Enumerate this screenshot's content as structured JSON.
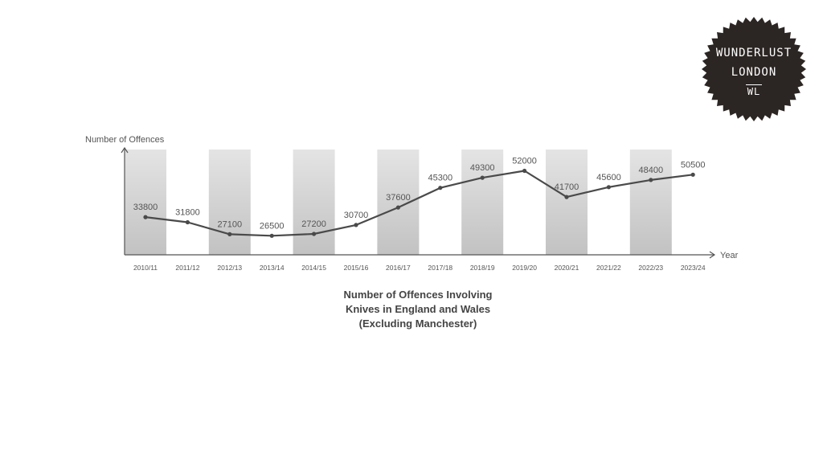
{
  "chart_data": {
    "type": "line",
    "title": "Number of Offences Involving Knives in England and Wales (Excluding Manchester)",
    "title_lines": [
      "Number of Offences Involving",
      "Knives in England and Wales",
      "(Excluding Manchester)"
    ],
    "xlabel": "Year",
    "ylabel": "Number of Offences",
    "categories": [
      "2010/11",
      "2011/12",
      "2012/13",
      "2013/14",
      "2014/15",
      "2015/16",
      "2016/17",
      "2017/18",
      "2018/19",
      "2019/20",
      "2020/21",
      "2021/22",
      "2022/23",
      "2023/24"
    ],
    "values": [
      33800,
      31800,
      27100,
      26500,
      27200,
      30700,
      37600,
      45300,
      49300,
      52000,
      41700,
      45600,
      48400,
      50500
    ],
    "ylim": [
      19000,
      61000
    ],
    "grid": false,
    "alternating_band_categories": [
      0,
      2,
      4,
      6,
      8,
      10,
      12
    ],
    "colors": {
      "line": "#4a4a4a",
      "band_top": "#e4e4e4",
      "band_bottom": "#c2c2c2",
      "axis": "#555555",
      "text": "#555555"
    }
  },
  "logo": {
    "line1": "WUNDERLUST",
    "line2": "LONDON",
    "mark": "WL",
    "color": "#2b2523"
  }
}
